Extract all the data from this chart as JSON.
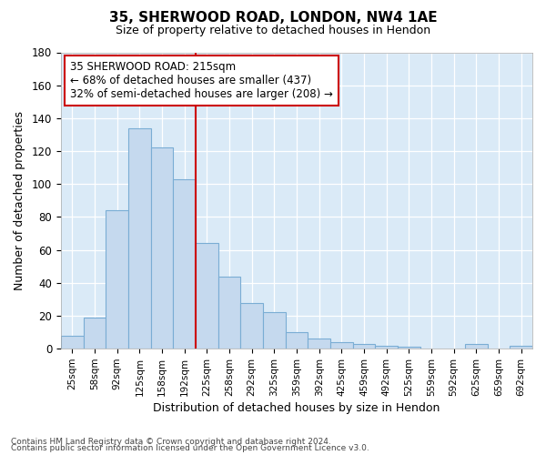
{
  "title_line1": "35, SHERWOOD ROAD, LONDON, NW4 1AE",
  "title_line2": "Size of property relative to detached houses in Hendon",
  "xlabel": "Distribution of detached houses by size in Hendon",
  "ylabel": "Number of detached properties",
  "footnote1": "Contains HM Land Registry data © Crown copyright and database right 2024.",
  "footnote2": "Contains public sector information licensed under the Open Government Licence v3.0.",
  "annotation_line1": "35 SHERWOOD ROAD: 215sqm",
  "annotation_line2": "← 68% of detached houses are smaller (437)",
  "annotation_line3": "32% of semi-detached houses are larger (208) →",
  "bar_color": "#c5d9ee",
  "bar_edge_color": "#7aadd4",
  "line_color": "#cc0000",
  "annotation_box_color": "#ffffff",
  "annotation_box_edge": "#cc0000",
  "plot_bg_color": "#daeaf7",
  "categories": [
    "25sqm",
    "58sqm",
    "92sqm",
    "125sqm",
    "158sqm",
    "192sqm",
    "225sqm",
    "258sqm",
    "292sqm",
    "325sqm",
    "359sqm",
    "392sqm",
    "425sqm",
    "459sqm",
    "492sqm",
    "525sqm",
    "559sqm",
    "592sqm",
    "625sqm",
    "659sqm",
    "692sqm"
  ],
  "values": [
    8,
    19,
    84,
    134,
    122,
    103,
    64,
    44,
    28,
    22,
    10,
    6,
    4,
    3,
    2,
    1,
    0,
    0,
    3,
    0,
    2
  ],
  "property_bin_index": 5.5,
  "ylim": [
    0,
    180
  ],
  "yticks": [
    0,
    20,
    40,
    60,
    80,
    100,
    120,
    140,
    160,
    180
  ]
}
